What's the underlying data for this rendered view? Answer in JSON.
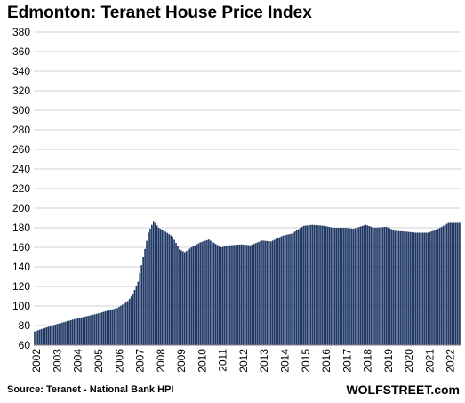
{
  "chart_data": {
    "type": "bar",
    "title": "Edmonton: Teranet House Price Index",
    "source": "Source: Teranet - National Bank HPI",
    "brand": "WOLFSTREET.com",
    "xlabel": "",
    "ylabel": "",
    "ylim": [
      60,
      380
    ],
    "yticks": [
      60,
      80,
      100,
      120,
      140,
      160,
      180,
      200,
      220,
      240,
      260,
      280,
      300,
      320,
      340,
      360,
      380
    ],
    "xticks": [
      "2002",
      "2003",
      "2004",
      "2005",
      "2006",
      "2007",
      "2008",
      "2009",
      "2010",
      "2011",
      "2012",
      "2013",
      "2014",
      "2015",
      "2016",
      "2017",
      "2018",
      "2019",
      "2020",
      "2021",
      "2022"
    ],
    "grid": true,
    "bar_color": "#1f3864",
    "x_start": "2002-01",
    "frequency": "monthly",
    "anchors": [
      [
        "2002-01",
        74
      ],
      [
        "2002-06",
        77
      ],
      [
        "2003-01",
        81
      ],
      [
        "2004-01",
        87
      ],
      [
        "2005-01",
        92
      ],
      [
        "2006-01",
        98
      ],
      [
        "2006-07",
        105
      ],
      [
        "2006-10",
        112
      ],
      [
        "2007-01",
        125
      ],
      [
        "2007-04",
        150
      ],
      [
        "2007-07",
        175
      ],
      [
        "2007-10",
        187
      ],
      [
        "2008-01",
        180
      ],
      [
        "2008-05",
        176
      ],
      [
        "2008-09",
        171
      ],
      [
        "2009-01",
        158
      ],
      [
        "2009-04",
        155
      ],
      [
        "2009-08",
        160
      ],
      [
        "2010-01",
        165
      ],
      [
        "2010-06",
        168
      ],
      [
        "2011-01",
        160
      ],
      [
        "2011-06",
        162
      ],
      [
        "2012-01",
        163
      ],
      [
        "2012-06",
        162
      ],
      [
        "2013-01",
        167
      ],
      [
        "2013-06",
        166
      ],
      [
        "2014-01",
        172
      ],
      [
        "2014-06",
        174
      ],
      [
        "2015-01",
        182
      ],
      [
        "2015-06",
        183
      ],
      [
        "2016-01",
        182
      ],
      [
        "2016-06",
        180
      ],
      [
        "2017-01",
        180
      ],
      [
        "2017-06",
        179
      ],
      [
        "2018-01",
        183
      ],
      [
        "2018-06",
        180
      ],
      [
        "2019-01",
        181
      ],
      [
        "2019-06",
        177
      ],
      [
        "2020-01",
        176
      ],
      [
        "2020-06",
        175
      ],
      [
        "2021-01",
        175
      ],
      [
        "2021-06",
        178
      ],
      [
        "2022-01",
        185
      ],
      [
        "2022-08",
        185
      ]
    ]
  }
}
